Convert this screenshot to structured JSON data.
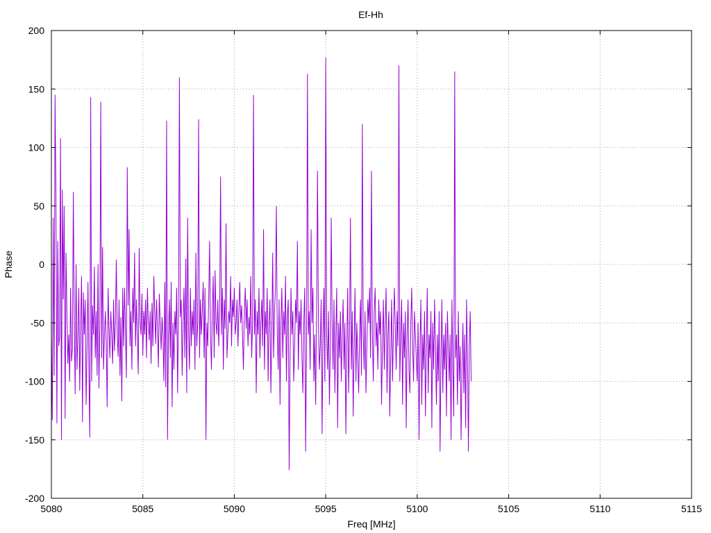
{
  "chart_data": {
    "type": "line",
    "title": "Ef-Hh",
    "xlabel": "Freq [MHz]",
    "ylabel": "Phase",
    "xlim": [
      5080,
      5115
    ],
    "ylim": [
      -200,
      200
    ],
    "grid": true,
    "x_ticks": [
      5080,
      5085,
      5090,
      5095,
      5100,
      5105,
      5110,
      5115
    ],
    "y_ticks": [
      -200,
      -150,
      -100,
      -50,
      0,
      50,
      100,
      150,
      200
    ],
    "x_tick_labels": [
      "5080",
      "5085",
      "5090",
      "5095",
      "5100",
      "5105",
      "5110",
      "5115"
    ],
    "y_tick_labels": [
      "-200",
      "-150",
      "-100",
      "-50",
      "0",
      "50",
      "100",
      "150",
      "200"
    ],
    "series": [
      {
        "color": "#9400d3",
        "x_start": 5080.0,
        "x_step": 0.05,
        "values": [
          -60,
          -133,
          40,
          -95,
          145,
          58,
          -136,
          20,
          -70,
          -62,
          108,
          -150,
          64,
          -30,
          50,
          -132,
          10,
          -40,
          -85,
          -60,
          -100,
          -20,
          -83,
          -72,
          62,
          -45,
          -111,
          0,
          -90,
          -60,
          -20,
          -108,
          -50,
          -10,
          -135,
          -24,
          -60,
          -30,
          -120,
          -70,
          -15,
          -90,
          -148,
          143,
          -100,
          -35,
          -60,
          -2,
          -80,
          -40,
          -95,
          0,
          -106,
          -50,
          139,
          -80,
          15,
          -90,
          -60,
          -40,
          -68,
          -122,
          -20,
          -55,
          -80,
          -40,
          -60,
          -85,
          -30,
          -74,
          -50,
          4,
          -60,
          -79,
          -30,
          -95,
          -45,
          -117,
          -20,
          -70,
          -20,
          -55,
          -97,
          83,
          -35,
          30,
          -70,
          -40,
          -90,
          -20,
          -50,
          10,
          -70,
          -30,
          -60,
          -94,
          14,
          -50,
          -60,
          -25,
          -78,
          -40,
          -60,
          -30,
          -80,
          -20,
          -50,
          -65,
          -40,
          -85,
          -33,
          -70,
          -10,
          -40,
          -68,
          -30,
          -55,
          -88,
          -25,
          -50,
          -73,
          -45,
          -60,
          -100,
          -15,
          -105,
          123,
          -150,
          -60,
          -30,
          -80,
          -15,
          -122,
          -50,
          -90,
          -40,
          -60,
          -20,
          -110,
          -40,
          160,
          -45,
          -30,
          -95,
          -50,
          -20,
          -80,
          5,
          -110,
          40,
          -60,
          -90,
          -20,
          -70,
          -40,
          -60,
          -30,
          -90,
          10,
          -70,
          -50,
          124,
          -80,
          -30,
          -60,
          -40,
          -15,
          -80,
          -20,
          -150,
          -50,
          -70,
          -30,
          20,
          -60,
          -90,
          -40,
          -10,
          -80,
          -5,
          -50,
          -60,
          -30,
          -70,
          -40,
          75,
          -60,
          -20,
          -90,
          -30,
          -55,
          35,
          -80,
          -60,
          -40,
          -50,
          -10,
          -70,
          -30,
          -45,
          -20,
          -60,
          -50,
          -30,
          -70,
          -40,
          -15,
          -50,
          -35,
          -60,
          -90,
          -40,
          -20,
          -55,
          -30,
          -70,
          -45,
          -60,
          -10,
          -80,
          -50,
          145,
          -60,
          -30,
          -110,
          -40,
          -60,
          -20,
          -80,
          -50,
          -30,
          -70,
          30,
          -90,
          -40,
          -60,
          -20,
          -100,
          -50,
          -30,
          -110,
          -60,
          10,
          -80,
          -40,
          -20,
          50,
          -60,
          -90,
          -30,
          -120,
          -50,
          -20,
          -80,
          -40,
          -60,
          -10,
          -100,
          -45,
          -30,
          -176,
          -80,
          -20,
          -60,
          -40,
          -100,
          -70,
          -30,
          -50,
          20,
          -90,
          -40,
          -60,
          -30,
          -80,
          -110,
          -50,
          -20,
          -160,
          -70,
          163,
          -60,
          -40,
          -90,
          30,
          -50,
          -20,
          -100,
          -60,
          -120,
          -40,
          80,
          -50,
          -90,
          -70,
          -30,
          -145,
          -60,
          -20,
          -100,
          177,
          -60,
          -90,
          -40,
          -120,
          -70,
          40,
          -50,
          -90,
          -30,
          -110,
          -60,
          -20,
          -140,
          -50,
          -80,
          -40,
          -100,
          -60,
          -30,
          -90,
          -50,
          -145,
          -70,
          -20,
          -110,
          -60,
          40,
          -90,
          -40,
          -130,
          -70,
          -20,
          -100,
          -50,
          -80,
          -110,
          -60,
          -30,
          -95,
          120,
          -60,
          -90,
          -40,
          -110,
          -70,
          -30,
          -50,
          -20,
          -80,
          80,
          -60,
          -100,
          -40,
          -20,
          -70,
          -50,
          -90,
          -30,
          -60,
          -40,
          -120,
          -70,
          -30,
          -90,
          -50,
          -20,
          -110,
          -60,
          -40,
          -130,
          -80,
          -30,
          -100,
          -60,
          -20,
          -50,
          -90,
          -40,
          -70,
          170,
          -100,
          -60,
          -30,
          -120,
          -50,
          -80,
          -40,
          -140,
          -60,
          -30,
          -90,
          -110,
          -50,
          -20,
          -70,
          -100,
          -40,
          -60,
          -80,
          -100,
          -50,
          -150,
          -70,
          -30,
          -120,
          -60,
          -90,
          -40,
          -130,
          -70,
          -20,
          -110,
          -60,
          -80,
          -40,
          -140,
          -50,
          -90,
          -30,
          -70,
          -120,
          -60,
          -100,
          -40,
          -160,
          -80,
          -30,
          -110,
          -60,
          -90,
          -50,
          -130,
          -40,
          -70,
          -100,
          -60,
          -150,
          -30,
          -90,
          -130,
          165,
          -80,
          -60,
          -120,
          -40,
          -100,
          -70,
          -150,
          -90,
          -50,
          -110,
          -60,
          -140,
          -30,
          -80,
          -160,
          -70,
          -40,
          -100
        ]
      }
    ]
  }
}
